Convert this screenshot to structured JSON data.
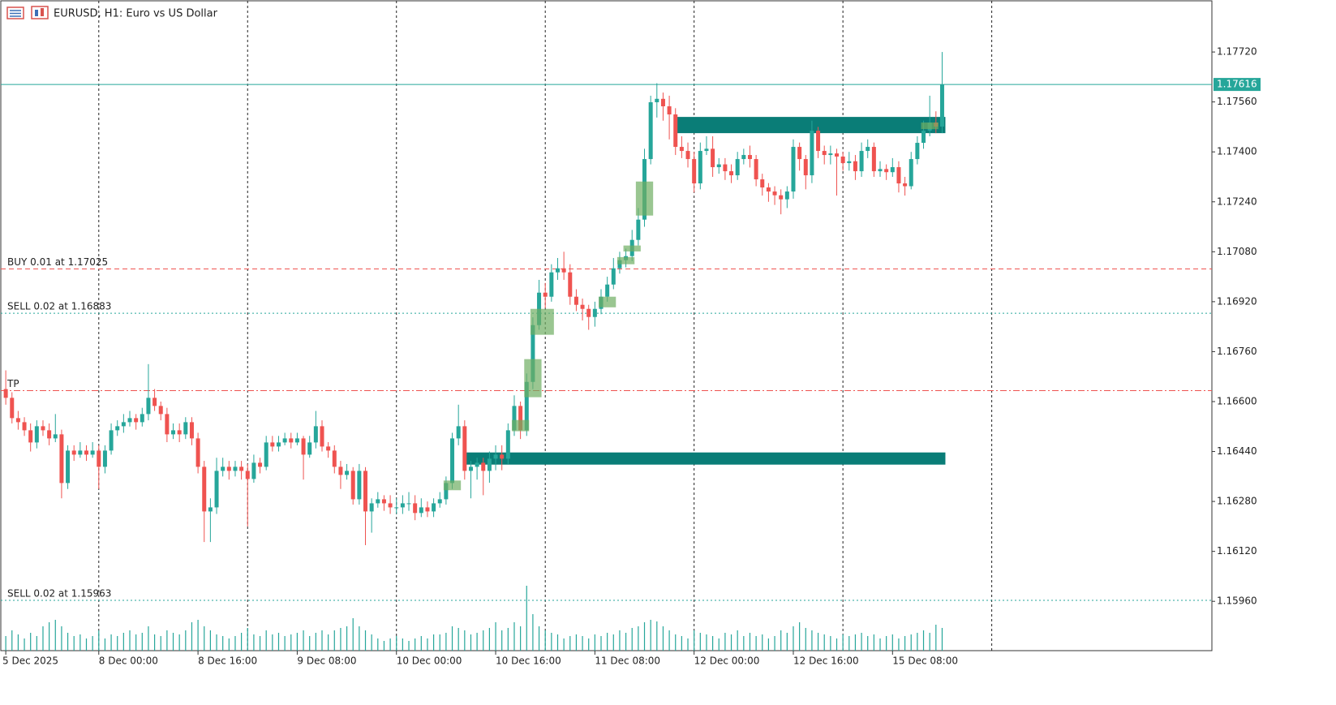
{
  "chart_data": {
    "type": "candlestick",
    "title": "EURUSD, H1:  Euro vs US Dollar",
    "up_color": "#26a69a",
    "down_color": "#ef5350",
    "volume_color": "#26a69a",
    "ylim": [
      1.15802,
      1.17884
    ],
    "xlim": [
      -0.8,
      194.5
    ],
    "yticks": [
      {
        "value": 1.1772,
        "label": "1.17720"
      },
      {
        "value": 1.1756,
        "label": "1.17560"
      },
      {
        "value": 1.174,
        "label": "1.17400"
      },
      {
        "value": 1.1724,
        "label": "1.17240"
      },
      {
        "value": 1.1708,
        "label": "1.17080"
      },
      {
        "value": 1.1692,
        "label": "1.16920"
      },
      {
        "value": 1.1676,
        "label": "1.16760"
      },
      {
        "value": 1.166,
        "label": "1.16600"
      },
      {
        "value": 1.1644,
        "label": "1.16440"
      },
      {
        "value": 1.1628,
        "label": "1.16280"
      },
      {
        "value": 1.1612,
        "label": "1.16120"
      },
      {
        "value": 1.1596,
        "label": "1.15960"
      }
    ],
    "xticks": [
      {
        "value": 0,
        "label": "5 Dec 2025"
      },
      {
        "value": 15,
        "label": "8 Dec 00:00"
      },
      {
        "value": 31,
        "label": "8 Dec 16:00"
      },
      {
        "value": 47,
        "label": "9 Dec 08:00"
      },
      {
        "value": 63,
        "label": "10 Dec 00:00"
      },
      {
        "value": 79,
        "label": "10 Dec 16:00"
      },
      {
        "value": 95,
        "label": "11 Dec 08:00"
      },
      {
        "value": 111,
        "label": "12 Dec 00:00"
      },
      {
        "value": 127,
        "label": "12 Dec 16:00"
      },
      {
        "value": 143,
        "label": "15 Dec 08:00"
      }
    ],
    "separators": [
      15,
      39,
      63,
      87,
      111,
      135,
      159
    ],
    "last_price": 1.17616,
    "last_price_color": "#26a69a",
    "order_lines": [
      {
        "label": "BUY 0.01 at 1.17025",
        "price": 1.17025,
        "color": "#ef5350",
        "dash": "6 4"
      },
      {
        "label": "SELL 0.02 at 1.16883",
        "price": 1.16883,
        "color": "#26a69a",
        "dash": "2 3"
      },
      {
        "label": "TP",
        "price": 1.16635,
        "color": "#ef5350",
        "dash": "8 3 2 3"
      },
      {
        "label": "SELL 0.02 at 1.15963",
        "price": 1.15963,
        "color": "#26a69a",
        "dash": "2 3"
      }
    ],
    "zones": [
      {
        "x_start": 74,
        "x_end": 151,
        "top": 1.16437,
        "bottom": 1.16398,
        "color": "#0a7d77"
      },
      {
        "x_start": 108,
        "x_end": 151,
        "top": 1.17512,
        "bottom": 1.1746,
        "color": "#0a7d77"
      }
    ],
    "boxes_color": "#6fae63",
    "boxes": [
      {
        "x_start": 71,
        "x_end": 73,
        "top": 1.16347,
        "bottom": 1.16316
      },
      {
        "x_start": 82,
        "x_end": 84,
        "top": 1.16541,
        "bottom": 1.16505
      },
      {
        "x_start": 84,
        "x_end": 86,
        "top": 1.16736,
        "bottom": 1.16614
      },
      {
        "x_start": 85,
        "x_end": 88,
        "top": 1.16897,
        "bottom": 1.16814
      },
      {
        "x_start": 96,
        "x_end": 98,
        "top": 1.16936,
        "bottom": 1.16902
      },
      {
        "x_start": 99,
        "x_end": 101,
        "top": 1.17063,
        "bottom": 1.1704
      },
      {
        "x_start": 100,
        "x_end": 102,
        "top": 1.171,
        "bottom": 1.17081
      },
      {
        "x_start": 102,
        "x_end": 104,
        "top": 1.17305,
        "bottom": 1.17196
      },
      {
        "x_start": 148,
        "x_end": 150,
        "top": 1.17494,
        "bottom": 1.17473
      }
    ],
    "candles": [
      [
        1.1664,
        1.167,
        1.1659,
        1.16612
      ],
      [
        1.16612,
        1.1663,
        1.1653,
        1.16547
      ],
      [
        1.16547,
        1.1657,
        1.1651,
        1.16534
      ],
      [
        1.16534,
        1.1655,
        1.1649,
        1.16508
      ],
      [
        1.16508,
        1.1653,
        1.1644,
        1.16469
      ],
      [
        1.16469,
        1.1654,
        1.1645,
        1.16521
      ],
      [
        1.16521,
        1.1654,
        1.1649,
        1.16508
      ],
      [
        1.16508,
        1.1653,
        1.1646,
        1.16482
      ],
      [
        1.16482,
        1.1656,
        1.1647,
        1.16495
      ],
      [
        1.16495,
        1.1651,
        1.1629,
        1.16339
      ],
      [
        1.16339,
        1.1646,
        1.1632,
        1.16443
      ],
      [
        1.16443,
        1.1646,
        1.1641,
        1.1643
      ],
      [
        1.1643,
        1.1647,
        1.1642,
        1.16443
      ],
      [
        1.16443,
        1.1646,
        1.1641,
        1.1643
      ],
      [
        1.1643,
        1.1647,
        1.1642,
        1.16443
      ],
      [
        1.16443,
        1.1646,
        1.1632,
        1.16391
      ],
      [
        1.16391,
        1.1646,
        1.1637,
        1.16443
      ],
      [
        1.16443,
        1.1653,
        1.1643,
        1.16508
      ],
      [
        1.16508,
        1.1654,
        1.1649,
        1.16521
      ],
      [
        1.16521,
        1.1656,
        1.165,
        1.16534
      ],
      [
        1.16534,
        1.1657,
        1.1652,
        1.16547
      ],
      [
        1.16547,
        1.1656,
        1.1651,
        1.16534
      ],
      [
        1.16534,
        1.1658,
        1.1652,
        1.1656
      ],
      [
        1.1656,
        1.1672,
        1.1654,
        1.16612
      ],
      [
        1.16612,
        1.1664,
        1.1657,
        1.16586
      ],
      [
        1.16586,
        1.166,
        1.1654,
        1.1656
      ],
      [
        1.1656,
        1.1658,
        1.1647,
        1.16495
      ],
      [
        1.16495,
        1.1653,
        1.1648,
        1.16508
      ],
      [
        1.16508,
        1.1653,
        1.1647,
        1.16495
      ],
      [
        1.16495,
        1.1655,
        1.1648,
        1.16534
      ],
      [
        1.16534,
        1.1655,
        1.1646,
        1.16482
      ],
      [
        1.16482,
        1.165,
        1.1637,
        1.16391
      ],
      [
        1.16391,
        1.1641,
        1.1615,
        1.16248
      ],
      [
        1.16248,
        1.1629,
        1.1615,
        1.16261
      ],
      [
        1.16261,
        1.1642,
        1.1624,
        1.16378
      ],
      [
        1.16378,
        1.1642,
        1.1636,
        1.16391
      ],
      [
        1.16391,
        1.1641,
        1.1635,
        1.16378
      ],
      [
        1.16378,
        1.1641,
        1.1636,
        1.16391
      ],
      [
        1.16391,
        1.1641,
        1.1635,
        1.16378
      ],
      [
        1.16378,
        1.164,
        1.162,
        1.16352
      ],
      [
        1.16352,
        1.1643,
        1.1634,
        1.16404
      ],
      [
        1.16404,
        1.1642,
        1.1637,
        1.16391
      ],
      [
        1.16391,
        1.1649,
        1.1638,
        1.16469
      ],
      [
        1.16469,
        1.1649,
        1.1644,
        1.16456
      ],
      [
        1.16456,
        1.1649,
        1.1644,
        1.16469
      ],
      [
        1.16469,
        1.165,
        1.1646,
        1.16482
      ],
      [
        1.16482,
        1.165,
        1.1645,
        1.16469
      ],
      [
        1.16469,
        1.165,
        1.1646,
        1.16482
      ],
      [
        1.16482,
        1.1649,
        1.1635,
        1.1643
      ],
      [
        1.1643,
        1.1649,
        1.1642,
        1.16469
      ],
      [
        1.16469,
        1.1657,
        1.1645,
        1.16521
      ],
      [
        1.16521,
        1.1654,
        1.1644,
        1.16456
      ],
      [
        1.16456,
        1.1647,
        1.1642,
        1.16443
      ],
      [
        1.16443,
        1.1646,
        1.1637,
        1.16391
      ],
      [
        1.16391,
        1.1641,
        1.1632,
        1.16365
      ],
      [
        1.16365,
        1.164,
        1.1635,
        1.16378
      ],
      [
        1.16378,
        1.1639,
        1.1627,
        1.16287
      ],
      [
        1.16287,
        1.164,
        1.1627,
        1.16378
      ],
      [
        1.16378,
        1.1639,
        1.1614,
        1.16248
      ],
      [
        1.16248,
        1.1629,
        1.1618,
        1.16274
      ],
      [
        1.16274,
        1.1631,
        1.1626,
        1.16287
      ],
      [
        1.16287,
        1.163,
        1.1625,
        1.16274
      ],
      [
        1.16274,
        1.163,
        1.1624,
        1.16261
      ],
      [
        1.16261,
        1.1629,
        1.1624,
        1.16261
      ],
      [
        1.16261,
        1.163,
        1.1624,
        1.16274
      ],
      [
        1.16274,
        1.1631,
        1.1625,
        1.16274
      ],
      [
        1.16274,
        1.163,
        1.1622,
        1.16243
      ],
      [
        1.16243,
        1.1629,
        1.1623,
        1.16261
      ],
      [
        1.16261,
        1.1628,
        1.1623,
        1.16248
      ],
      [
        1.16248,
        1.1629,
        1.1623,
        1.16274
      ],
      [
        1.16274,
        1.1631,
        1.1626,
        1.16287
      ],
      [
        1.16287,
        1.1636,
        1.1627,
        1.16339
      ],
      [
        1.16339,
        1.165,
        1.1632,
        1.16482
      ],
      [
        1.16482,
        1.1659,
        1.1646,
        1.16521
      ],
      [
        1.16521,
        1.1654,
        1.1635,
        1.16378
      ],
      [
        1.16378,
        1.1641,
        1.1629,
        1.16391
      ],
      [
        1.16391,
        1.1642,
        1.1635,
        1.16404
      ],
      [
        1.16404,
        1.1642,
        1.163,
        1.16378
      ],
      [
        1.16378,
        1.1644,
        1.1634,
        1.16417
      ],
      [
        1.16417,
        1.1646,
        1.1638,
        1.1643
      ],
      [
        1.1643,
        1.1646,
        1.1638,
        1.16417
      ],
      [
        1.16417,
        1.1653,
        1.164,
        1.16508
      ],
      [
        1.16508,
        1.1662,
        1.1649,
        1.16586
      ],
      [
        1.16586,
        1.166,
        1.1648,
        1.16508
      ],
      [
        1.16508,
        1.1669,
        1.1649,
        1.16663
      ],
      [
        1.16663,
        1.1687,
        1.1664,
        1.16845
      ],
      [
        1.16845,
        1.1699,
        1.1683,
        1.16949
      ],
      [
        1.16949,
        1.1698,
        1.169,
        1.16936
      ],
      [
        1.16936,
        1.1704,
        1.1692,
        1.17014
      ],
      [
        1.17014,
        1.1706,
        1.1699,
        1.17027
      ],
      [
        1.17027,
        1.1708,
        1.1699,
        1.17014
      ],
      [
        1.17014,
        1.1704,
        1.1691,
        1.16936
      ],
      [
        1.16936,
        1.1696,
        1.1689,
        1.1691
      ],
      [
        1.1691,
        1.1693,
        1.1686,
        1.16897
      ],
      [
        1.16897,
        1.1691,
        1.1683,
        1.16871
      ],
      [
        1.16871,
        1.1692,
        1.1684,
        1.16897
      ],
      [
        1.16897,
        1.1696,
        1.1688,
        1.16936
      ],
      [
        1.16936,
        1.17,
        1.1692,
        1.16975
      ],
      [
        1.16975,
        1.1706,
        1.1696,
        1.17027
      ],
      [
        1.17027,
        1.1708,
        1.1701,
        1.17053
      ],
      [
        1.17053,
        1.1709,
        1.1703,
        1.17066
      ],
      [
        1.17066,
        1.1715,
        1.1705,
        1.17118
      ],
      [
        1.17118,
        1.1722,
        1.171,
        1.17183
      ],
      [
        1.17183,
        1.1741,
        1.1716,
        1.17377
      ],
      [
        1.17377,
        1.1758,
        1.1736,
        1.17559
      ],
      [
        1.17559,
        1.1762,
        1.1751,
        1.1757
      ],
      [
        1.1757,
        1.1759,
        1.175,
        1.17546
      ],
      [
        1.17546,
        1.1758,
        1.1744,
        1.1752
      ],
      [
        1.1752,
        1.1754,
        1.1739,
        1.17416
      ],
      [
        1.17416,
        1.1745,
        1.1738,
        1.17403
      ],
      [
        1.17403,
        1.1743,
        1.1735,
        1.17377
      ],
      [
        1.17377,
        1.174,
        1.1727,
        1.17299
      ],
      [
        1.17299,
        1.1743,
        1.1728,
        1.17403
      ],
      [
        1.17403,
        1.1745,
        1.1739,
        1.1741
      ],
      [
        1.1741,
        1.1745,
        1.1732,
        1.17351
      ],
      [
        1.17351,
        1.1738,
        1.1733,
        1.1736
      ],
      [
        1.1736,
        1.1738,
        1.1731,
        1.17338
      ],
      [
        1.17338,
        1.1736,
        1.173,
        1.17325
      ],
      [
        1.17325,
        1.174,
        1.1731,
        1.17377
      ],
      [
        1.17377,
        1.1741,
        1.1736,
        1.1739
      ],
      [
        1.1739,
        1.1742,
        1.1735,
        1.17377
      ],
      [
        1.17377,
        1.1739,
        1.1729,
        1.17312
      ],
      [
        1.17312,
        1.1733,
        1.1726,
        1.17286
      ],
      [
        1.17286,
        1.173,
        1.1724,
        1.17273
      ],
      [
        1.17273,
        1.1729,
        1.1723,
        1.17261
      ],
      [
        1.17261,
        1.1728,
        1.172,
        1.17248
      ],
      [
        1.17248,
        1.1729,
        1.1722,
        1.17273
      ],
      [
        1.17273,
        1.1744,
        1.1725,
        1.17416
      ],
      [
        1.17416,
        1.1743,
        1.1734,
        1.17377
      ],
      [
        1.17377,
        1.1739,
        1.1728,
        1.17325
      ],
      [
        1.17325,
        1.175,
        1.173,
        1.17468
      ],
      [
        1.17468,
        1.1748,
        1.1738,
        1.17403
      ],
      [
        1.17403,
        1.1742,
        1.1736,
        1.1739
      ],
      [
        1.1739,
        1.1742,
        1.1736,
        1.17395
      ],
      [
        1.17395,
        1.1741,
        1.1726,
        1.17385
      ],
      [
        1.17385,
        1.174,
        1.1734,
        1.17364
      ],
      [
        1.17364,
        1.174,
        1.1734,
        1.1737
      ],
      [
        1.1737,
        1.1739,
        1.1731,
        1.17338
      ],
      [
        1.17338,
        1.1743,
        1.1732,
        1.17403
      ],
      [
        1.17403,
        1.1744,
        1.1738,
        1.17416
      ],
      [
        1.17416,
        1.1743,
        1.1732,
        1.17338
      ],
      [
        1.17338,
        1.1737,
        1.1732,
        1.17345
      ],
      [
        1.17345,
        1.1736,
        1.1731,
        1.17335
      ],
      [
        1.17335,
        1.1738,
        1.1732,
        1.17351
      ],
      [
        1.17351,
        1.1737,
        1.1727,
        1.17299
      ],
      [
        1.17299,
        1.1732,
        1.1726,
        1.1729
      ],
      [
        1.1729,
        1.174,
        1.1728,
        1.17377
      ],
      [
        1.17377,
        1.1745,
        1.1736,
        1.17429
      ],
      [
        1.17429,
        1.175,
        1.1741,
        1.17468
      ],
      [
        1.17468,
        1.1758,
        1.1745,
        1.17494
      ],
      [
        1.17494,
        1.1753,
        1.1746,
        1.17481
      ],
      [
        1.17481,
        1.1772,
        1.1746,
        1.17616
      ]
    ],
    "volumes": [
      18,
      25,
      20,
      15,
      22,
      18,
      30,
      35,
      38,
      30,
      22,
      18,
      20,
      15,
      18,
      25,
      15,
      20,
      18,
      22,
      25,
      20,
      22,
      30,
      20,
      18,
      25,
      22,
      20,
      25,
      35,
      38,
      30,
      25,
      20,
      18,
      15,
      18,
      22,
      28,
      20,
      18,
      25,
      20,
      22,
      18,
      20,
      22,
      25,
      18,
      22,
      25,
      20,
      25,
      28,
      30,
      40,
      30,
      25,
      20,
      15,
      12,
      15,
      18,
      15,
      12,
      15,
      18,
      15,
      20,
      20,
      22,
      30,
      28,
      25,
      20,
      22,
      25,
      28,
      35,
      25,
      28,
      35,
      30,
      80,
      45,
      30,
      25,
      22,
      20,
      15,
      18,
      20,
      18,
      15,
      20,
      18,
      22,
      20,
      25,
      22,
      28,
      30,
      35,
      38,
      36,
      30,
      25,
      20,
      18,
      15,
      25,
      22,
      20,
      18,
      15,
      22,
      20,
      25,
      18,
      22,
      18,
      20,
      15,
      18,
      25,
      22,
      30,
      35,
      28,
      25,
      22,
      20,
      18,
      15,
      20,
      18,
      20,
      22,
      18,
      20,
      15,
      18,
      20,
      15,
      18,
      20,
      22,
      25,
      22,
      32,
      28
    ]
  }
}
